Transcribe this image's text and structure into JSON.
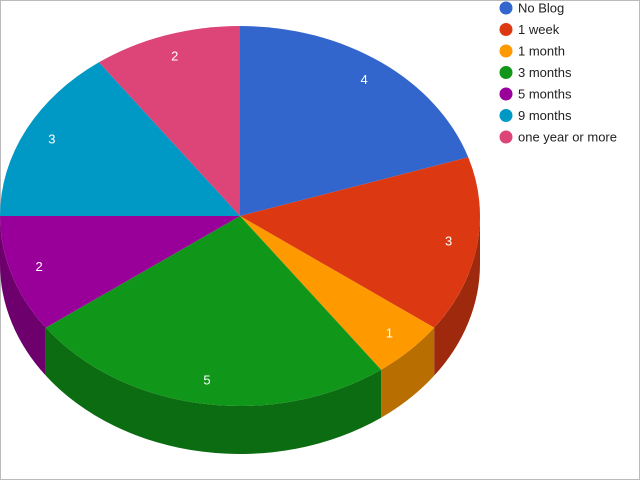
{
  "chart_data": {
    "type": "pie",
    "three_d": true,
    "categories": [
      "No Blog",
      "1 week",
      "1 month",
      "3 months",
      "5 months",
      "9 months",
      "one year or more"
    ],
    "values": [
      4,
      3,
      1,
      5,
      2,
      3,
      2
    ],
    "colors": [
      "#3366cc",
      "#dc3912",
      "#ff9900",
      "#109618",
      "#990099",
      "#0099c6",
      "#dd4477"
    ],
    "legend": "right"
  }
}
